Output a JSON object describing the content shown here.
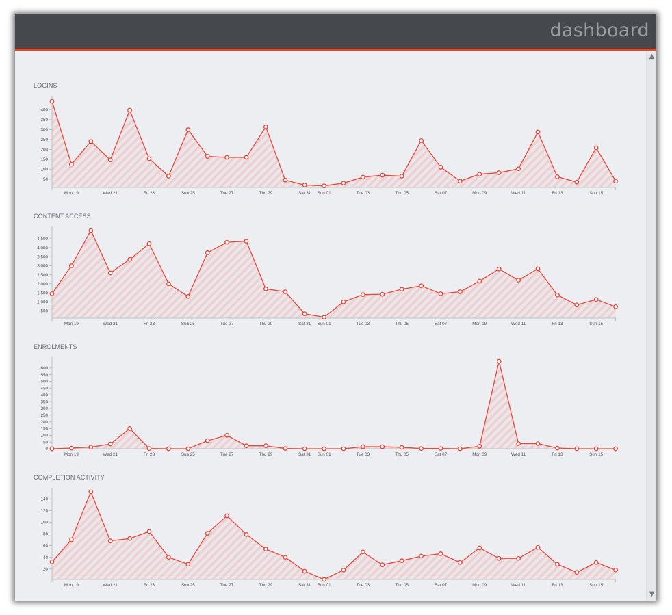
{
  "header": {
    "title": "dashboard"
  },
  "scrollbar": {
    "up_icon": "▲",
    "down_icon": "▼"
  },
  "colors": {
    "line": "#e8473a",
    "header_bg": "#45494d",
    "accent": "#e8471f",
    "panel_bg": "#eceef2"
  },
  "chart_data": [
    {
      "type": "area",
      "title": "LOGINS",
      "xlabel": "",
      "ylabel": "",
      "x_tick_labels": [
        "Mon 19",
        "Wed 21",
        "Fri 23",
        "Sun 25",
        "Tue 27",
        "Thu 29",
        "Sat 31",
        "Sun 01",
        "Tue 03",
        "Thu 05",
        "Sat 07",
        "Mon 09",
        "Wed 11",
        "Fri 13",
        "Sun 15"
      ],
      "x_tick_positions": [
        1,
        3,
        5,
        7,
        9,
        11,
        13,
        14,
        16,
        18,
        20,
        22,
        24,
        26,
        28
      ],
      "y_ticks": [
        "50",
        "100",
        "150",
        "200",
        "250",
        "300",
        "350",
        "400"
      ],
      "ylim": [
        8,
        450
      ],
      "values": [
        443,
        125,
        240,
        147,
        398,
        153,
        65,
        300,
        165,
        160,
        160,
        314,
        45,
        20,
        16,
        30,
        60,
        70,
        65,
        245,
        110,
        40,
        75,
        82,
        102,
        288,
        62,
        35,
        208,
        40
      ]
    },
    {
      "type": "area",
      "title": "CONTENT ACCESS",
      "xlabel": "",
      "ylabel": "",
      "x_tick_labels": [
        "Mon 19",
        "Wed 21",
        "Fri 23",
        "Sun 25",
        "Tue 27",
        "Thu 29",
        "Sat 31",
        "Sun 01",
        "Tue 03",
        "Thu 05",
        "Sat 07",
        "Mon 09",
        "Wed 11",
        "Fri 13",
        "Sun 15"
      ],
      "x_tick_positions": [
        1,
        3,
        5,
        7,
        9,
        11,
        13,
        14,
        16,
        18,
        20,
        22,
        24,
        26,
        28
      ],
      "y_ticks": [
        "500",
        "1,000",
        "1,500",
        "2,000",
        "2,500",
        "3,000",
        "3,500",
        "4,000",
        "4,500"
      ],
      "ylim": [
        100,
        4950
      ],
      "values": [
        1450,
        3000,
        4950,
        2600,
        3350,
        4220,
        2000,
        1300,
        3720,
        4300,
        4360,
        1720,
        1560,
        340,
        150,
        1000,
        1400,
        1420,
        1700,
        1890,
        1450,
        1560,
        2150,
        2820,
        2200,
        2830,
        1380,
        830,
        1130,
        730
      ]
    },
    {
      "type": "area",
      "title": "ENROLMENTS",
      "xlabel": "",
      "ylabel": "",
      "x_tick_labels": [
        "Mon 19",
        "Wed 21",
        "Fri 23",
        "Sun 25",
        "Tue 27",
        "Thu 29",
        "Sat 31",
        "Sun 01",
        "Tue 03",
        "Thu 05",
        "Sat 07",
        "Mon 09",
        "Wed 11",
        "Fri 13",
        "Sun 15"
      ],
      "x_tick_positions": [
        1,
        3,
        5,
        7,
        9,
        11,
        13,
        14,
        16,
        18,
        20,
        22,
        24,
        26,
        28
      ],
      "y_ticks": [
        "0",
        "50",
        "100",
        "150",
        "200",
        "250",
        "300",
        "350",
        "400",
        "450",
        "500",
        "550",
        "600"
      ],
      "ylim": [
        0,
        650
      ],
      "values": [
        0,
        5,
        12,
        35,
        150,
        2,
        0,
        0,
        60,
        100,
        22,
        22,
        2,
        0,
        0,
        0,
        15,
        15,
        10,
        2,
        2,
        0,
        18,
        650,
        38,
        38,
        5,
        0,
        0,
        0
      ]
    },
    {
      "type": "area",
      "title": "COMPLETION ACTIVITY",
      "xlabel": "",
      "ylabel": "",
      "x_tick_labels": [
        "Mon 19",
        "Wed 21",
        "Fri 23",
        "Sun 25",
        "Tue 27",
        "Thu 29",
        "Sat 31",
        "Sun 01",
        "Tue 03",
        "Thu 05",
        "Sat 07",
        "Mon 09",
        "Wed 11",
        "Fri 13",
        "Sun 15"
      ],
      "x_tick_positions": [
        1,
        3,
        5,
        7,
        9,
        11,
        13,
        14,
        16,
        18,
        20,
        22,
        24,
        26,
        28
      ],
      "y_ticks": [
        "20",
        "40",
        "60",
        "80",
        "100",
        "120",
        "140"
      ],
      "ylim": [
        2,
        152
      ],
      "values": [
        32,
        70,
        152,
        68,
        72,
        84,
        40,
        28,
        81,
        111,
        79,
        54,
        40,
        16,
        2,
        18,
        49,
        27,
        34,
        42,
        46,
        31,
        56,
        38,
        38,
        57,
        28,
        14,
        31,
        18
      ]
    }
  ]
}
